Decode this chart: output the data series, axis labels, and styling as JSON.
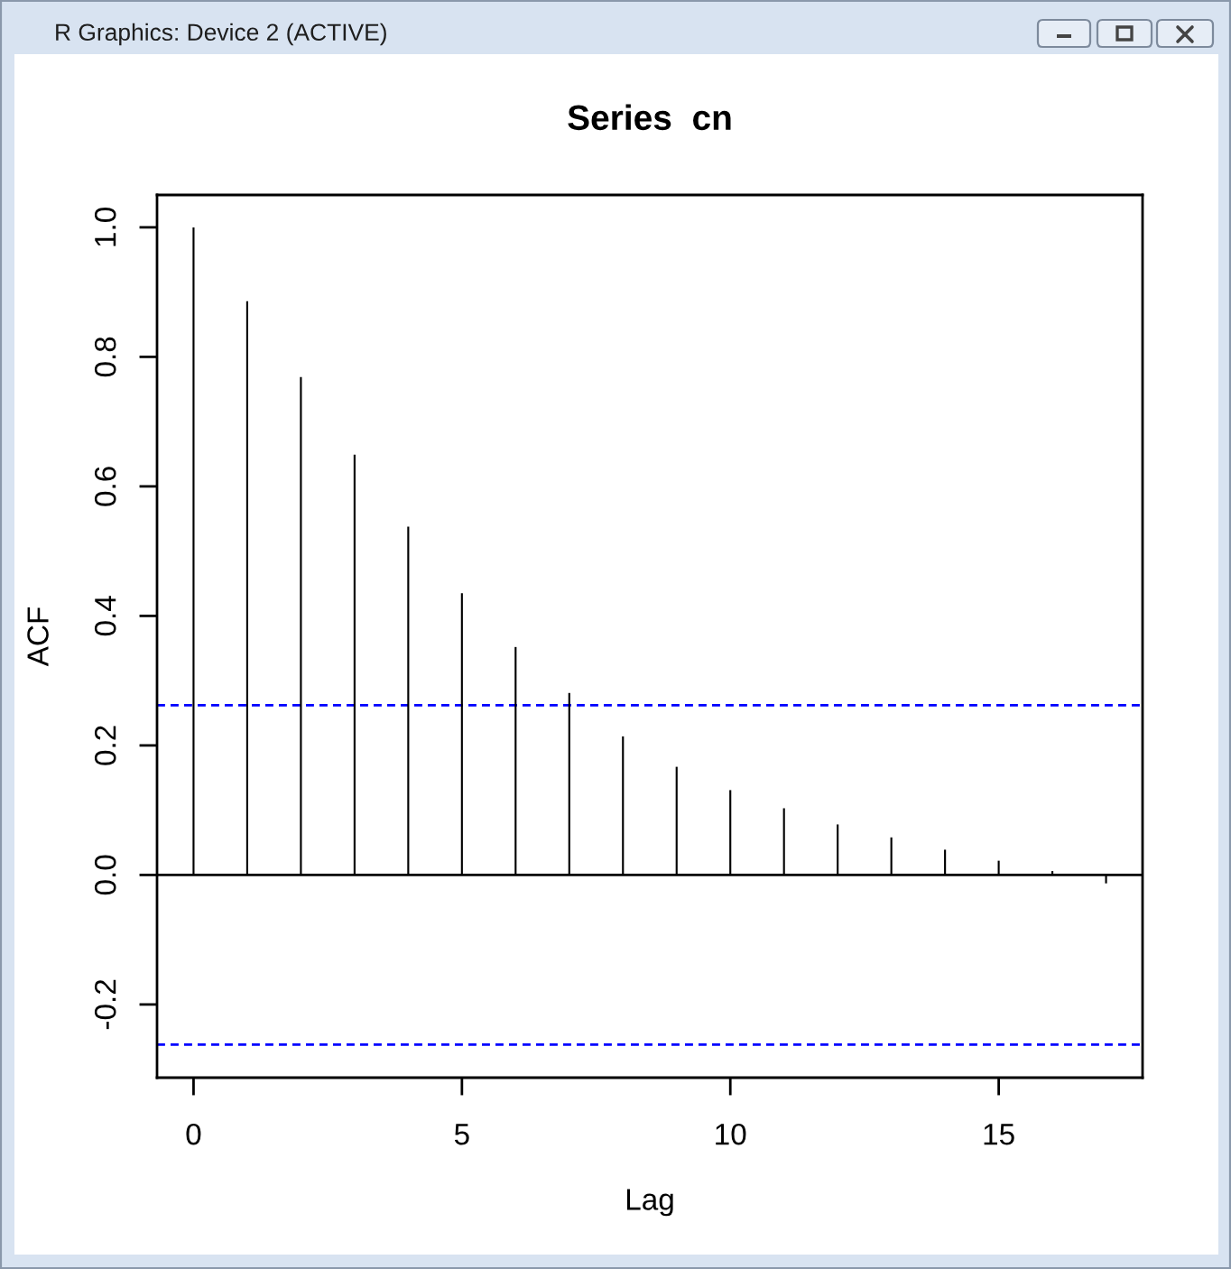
{
  "chart_data": {
    "type": "bar",
    "title": "Series  cn",
    "xlabel": "Lag",
    "ylabel": "ACF",
    "x": [
      0,
      1,
      2,
      3,
      4,
      5,
      6,
      7,
      8,
      9,
      10,
      11,
      12,
      13,
      14,
      15,
      16,
      17
    ],
    "values": [
      1.0,
      0.886,
      0.769,
      0.649,
      0.538,
      0.435,
      0.352,
      0.281,
      0.214,
      0.167,
      0.131,
      0.103,
      0.078,
      0.058,
      0.039,
      0.022,
      0.006,
      -0.013
    ],
    "color": "#000000",
    "xlim": [
      -0.68,
      17.68
    ],
    "ylim": [
      -0.313,
      1.05
    ],
    "xticks": [
      0,
      5,
      10,
      15
    ],
    "yticks": [
      {
        "value": -0.2,
        "label": "-0.2"
      },
      {
        "value": 0,
        "label": "0.0"
      },
      0.2,
      0.4,
      0.6,
      0.8,
      {
        "value": 1,
        "label": "1.0"
      }
    ],
    "ref_lines": [
      {
        "axis": "y",
        "value": 0,
        "color": "#000000",
        "line_style": "solid"
      },
      {
        "axis": "y",
        "value": 0.262,
        "color": "#0000ff",
        "line_style": "dashed"
      },
      {
        "axis": "y",
        "value": -0.262,
        "color": "#0000ff",
        "line_style": "dashed"
      }
    ],
    "grid": false,
    "annotations": [
      "R Graphics: Device 2 (ACTIVE)"
    ]
  }
}
